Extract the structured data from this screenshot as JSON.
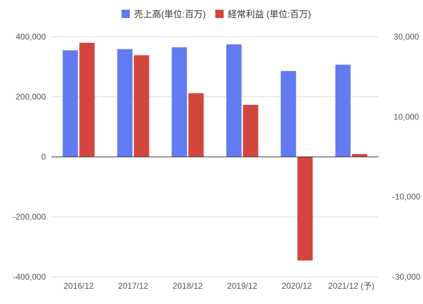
{
  "colors": {
    "primary_series": "#637BF0",
    "secondary_series": "#D2463E",
    "grid": "#d9d9d9",
    "zero_line": "#333333",
    "text": "#555555"
  },
  "chart_data": {
    "type": "bar",
    "categories": [
      "2016/12",
      "2017/12",
      "2018/12",
      "2019/12",
      "2020/12",
      "2021/12 (予)"
    ],
    "series": [
      {
        "name": "売上高(単位:百万)",
        "axis": "left",
        "color": "#637BF0",
        "values": [
          355000,
          359000,
          365000,
          375000,
          286000,
          307000
        ]
      },
      {
        "name": "経常利益 (単位:百万)",
        "axis": "right",
        "color": "#D2463E",
        "values": [
          28500,
          25400,
          15900,
          13000,
          -25900,
          700
        ]
      }
    ],
    "y_left": {
      "ylim": [
        -400000,
        400000
      ],
      "ticks": [
        400000,
        200000,
        0,
        -200000,
        -400000
      ],
      "tick_labels": [
        "400,000",
        "200,000",
        "0",
        "-200,000",
        "-400,000"
      ]
    },
    "y_right": {
      "ylim": [
        -30000,
        30000
      ],
      "ticks": [
        30000,
        10000,
        -10000,
        -30000
      ],
      "tick_labels": [
        "30,000",
        "10,000",
        "-10,000",
        "-30,000"
      ]
    },
    "legend_position": "top-center",
    "grid": true
  }
}
